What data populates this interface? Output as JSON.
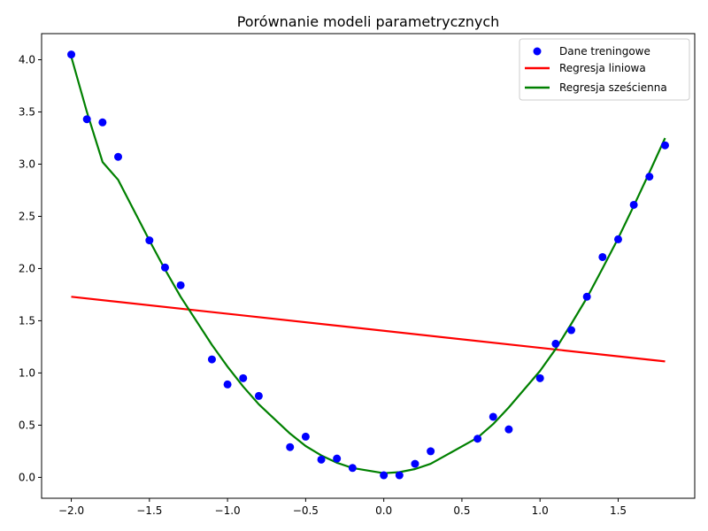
{
  "chart_data": {
    "type": "scatter",
    "title": "Porównanie modeli parametrycznych",
    "xlabel": "",
    "ylabel": "",
    "xlim": [
      -2.19,
      1.99
    ],
    "ylim": [
      -0.2,
      4.25
    ],
    "xticks": [
      -2.0,
      -1.5,
      -1.0,
      -0.5,
      0.0,
      0.5,
      1.0,
      1.5
    ],
    "xtick_labels": [
      "−2.0",
      "−1.5",
      "−1.0",
      "−0.5",
      "0.0",
      "0.5",
      "1.0",
      "1.5"
    ],
    "yticks": [
      0.0,
      0.5,
      1.0,
      1.5,
      2.0,
      2.5,
      3.0,
      3.5,
      4.0
    ],
    "ytick_labels": [
      "0.0",
      "0.5",
      "1.0",
      "1.5",
      "2.0",
      "2.5",
      "3.0",
      "3.5",
      "4.0"
    ],
    "grid": false,
    "legend_position": "top-right",
    "series": [
      {
        "name": "Dane treningowe",
        "kind": "scatter",
        "color": "#0000ff",
        "points": [
          [
            -2.0,
            4.05
          ],
          [
            -1.9,
            3.43
          ],
          [
            -1.8,
            3.4
          ],
          [
            -1.7,
            3.07
          ],
          [
            -1.5,
            2.27
          ],
          [
            -1.4,
            2.01
          ],
          [
            -1.3,
            1.84
          ],
          [
            -1.1,
            1.13
          ],
          [
            -1.0,
            0.89
          ],
          [
            -0.9,
            0.95
          ],
          [
            -0.8,
            0.78
          ],
          [
            -0.6,
            0.29
          ],
          [
            -0.5,
            0.39
          ],
          [
            -0.4,
            0.17
          ],
          [
            -0.3,
            0.18
          ],
          [
            -0.2,
            0.09
          ],
          [
            0.0,
            0.02
          ],
          [
            0.1,
            0.02
          ],
          [
            0.2,
            0.13
          ],
          [
            0.3,
            0.25
          ],
          [
            0.6,
            0.37
          ],
          [
            0.7,
            0.58
          ],
          [
            0.8,
            0.46
          ],
          [
            1.0,
            0.95
          ],
          [
            1.1,
            1.28
          ],
          [
            1.2,
            1.41
          ],
          [
            1.3,
            1.73
          ],
          [
            1.4,
            2.11
          ],
          [
            1.5,
            2.28
          ],
          [
            1.6,
            2.61
          ],
          [
            1.7,
            2.88
          ],
          [
            1.8,
            3.18
          ]
        ]
      },
      {
        "name": "Regresja liniowa",
        "kind": "line",
        "color": "#ff0000",
        "points": [
          [
            -2.0,
            1.73
          ],
          [
            1.8,
            1.11
          ]
        ]
      },
      {
        "name": "Regresja sześcienna",
        "kind": "line",
        "color": "#008000",
        "points": [
          [
            -2.0,
            4.03
          ],
          [
            -1.9,
            3.5
          ],
          [
            -1.8,
            3.02
          ],
          [
            -1.7,
            2.85
          ],
          [
            -1.5,
            2.27
          ],
          [
            -1.4,
            1.99
          ],
          [
            -1.3,
            1.73
          ],
          [
            -1.1,
            1.27
          ],
          [
            -1.0,
            1.06
          ],
          [
            -0.9,
            0.87
          ],
          [
            -0.8,
            0.7
          ],
          [
            -0.6,
            0.42
          ],
          [
            -0.5,
            0.3
          ],
          [
            -0.4,
            0.21
          ],
          [
            -0.3,
            0.14
          ],
          [
            -0.2,
            0.09
          ],
          [
            0.0,
            0.04
          ],
          [
            0.1,
            0.05
          ],
          [
            0.2,
            0.08
          ],
          [
            0.3,
            0.13
          ],
          [
            0.6,
            0.38
          ],
          [
            0.7,
            0.51
          ],
          [
            0.8,
            0.67
          ],
          [
            1.0,
            1.02
          ],
          [
            1.1,
            1.23
          ],
          [
            1.2,
            1.47
          ],
          [
            1.3,
            1.72
          ],
          [
            1.4,
            2.0
          ],
          [
            1.5,
            2.29
          ],
          [
            1.6,
            2.6
          ],
          [
            1.7,
            2.92
          ],
          [
            1.8,
            3.25
          ]
        ]
      }
    ]
  }
}
